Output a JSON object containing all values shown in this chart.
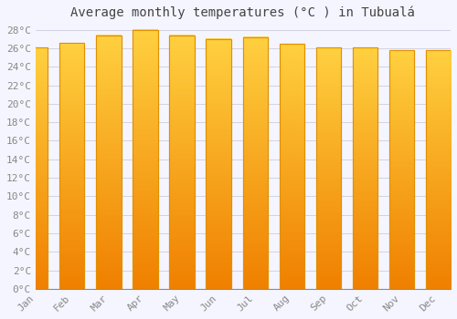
{
  "title": "Average monthly temperatures (°C ) in Tubualá",
  "months": [
    "Jan",
    "Feb",
    "Mar",
    "Apr",
    "May",
    "Jun",
    "Jul",
    "Aug",
    "Sep",
    "Oct",
    "Nov",
    "Dec"
  ],
  "values": [
    26.1,
    26.6,
    27.4,
    28.0,
    27.4,
    27.0,
    27.2,
    26.5,
    26.1,
    26.1,
    25.8,
    25.8
  ],
  "bar_color": "#FFC020",
  "bar_edge_color": "#E09000",
  "gradient_bottom": "#F08000",
  "gradient_top": "#FFD040",
  "background_color": "#F5F5FF",
  "grid_color": "#CCCCDD",
  "ylim_max": 28,
  "title_fontsize": 10,
  "tick_fontsize": 8,
  "font_color": "#888888",
  "title_color": "#444444"
}
